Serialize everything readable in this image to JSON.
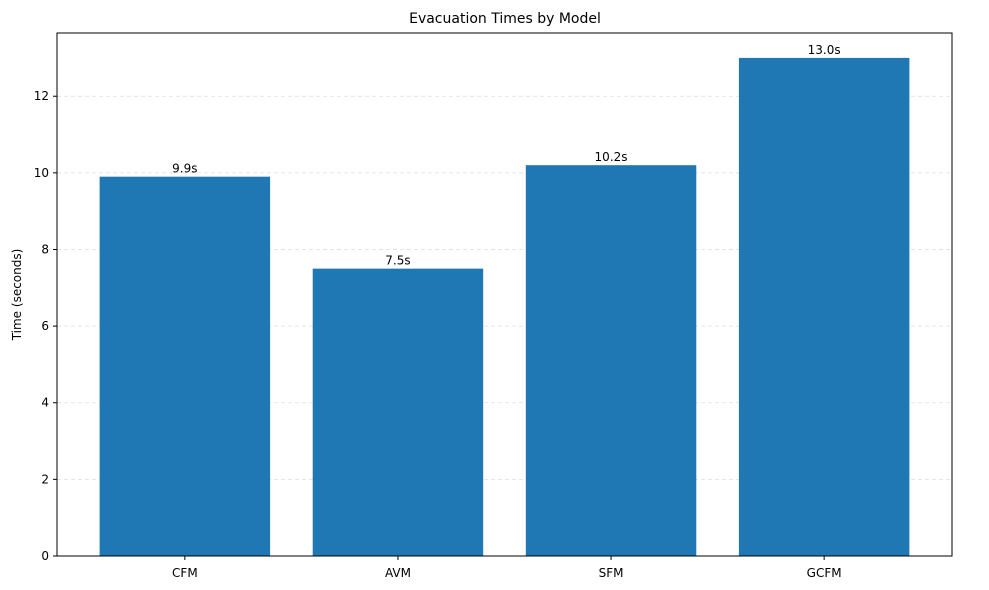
{
  "chart_data": {
    "type": "bar",
    "title": "Evacuation Times by Model",
    "xlabel": "",
    "ylabel": "Time (seconds)",
    "categories": [
      "CFM",
      "AVM",
      "SFM",
      "GCFM"
    ],
    "values": [
      9.9,
      7.5,
      10.2,
      13.0
    ],
    "data_labels": [
      "9.9s",
      "7.5s",
      "10.2s",
      "13.0s"
    ],
    "ylim": [
      0,
      13.65
    ],
    "yticks": [
      0,
      2,
      4,
      6,
      8,
      10,
      12
    ],
    "grid": "y-dashed",
    "bar_color": "#1f77b4",
    "legend": "none"
  }
}
